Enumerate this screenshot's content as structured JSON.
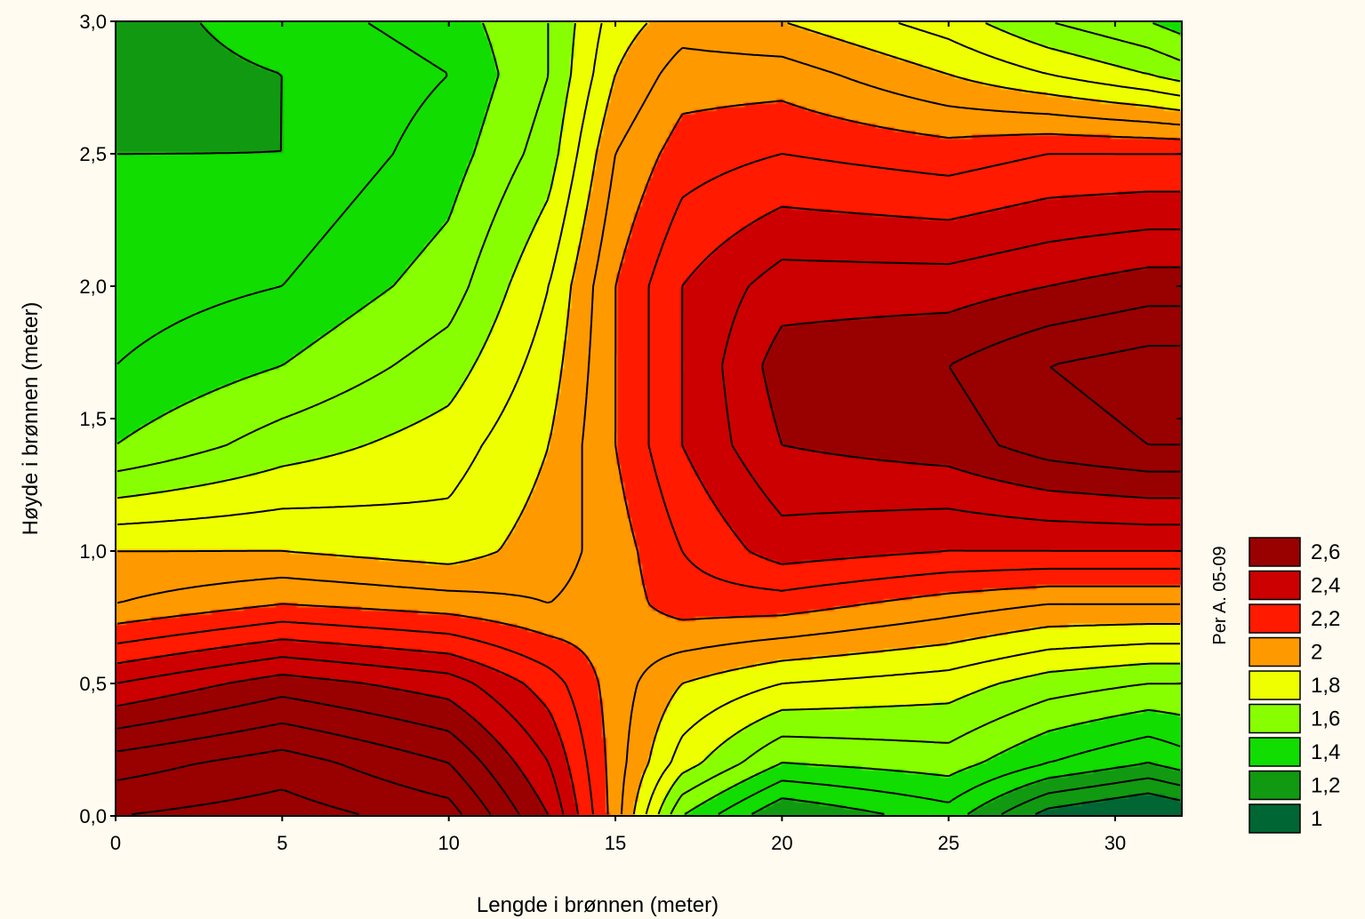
{
  "chart_data": {
    "type": "heatmap",
    "subtype": "filled-contour",
    "xlabel": "Lengde i brønnen (meter)",
    "ylabel": "Høyde i brønnen (meter)",
    "xlim": [
      0,
      32
    ],
    "ylim": [
      0,
      3
    ],
    "xticks": [
      0,
      5,
      10,
      15,
      20,
      25,
      30
    ],
    "xtick_labels": [
      "0",
      "5",
      "10",
      "15",
      "20",
      "25",
      "30"
    ],
    "yticks": [
      0,
      0.5,
      1.0,
      1.5,
      2.0,
      2.5,
      3.0
    ],
    "ytick_labels": [
      "0,0",
      "0,5",
      "1,0",
      "1,5",
      "2,0",
      "2,5",
      "3,0"
    ],
    "legend": {
      "position": "right",
      "entries": [
        {
          "label": "2,6",
          "level": 2.6,
          "color": "#990000"
        },
        {
          "label": "2,4",
          "level": 2.4,
          "color": "#cc0000"
        },
        {
          "label": "2,2",
          "level": 2.2,
          "color": "#ff1a00"
        },
        {
          "label": "2",
          "level": 2.0,
          "color": "#ff9900"
        },
        {
          "label": "1,8",
          "level": 1.8,
          "color": "#eeff00"
        },
        {
          "label": "1,6",
          "level": 1.6,
          "color": "#88ff00"
        },
        {
          "label": "1,4",
          "level": 1.4,
          "color": "#11dd00"
        },
        {
          "label": "1,2",
          "level": 1.2,
          "color": "#119911"
        },
        {
          "label": "1",
          "level": 1.0,
          "color": "#006633"
        }
      ]
    },
    "field_x": [
      0,
      5,
      10,
      13,
      15,
      17,
      20,
      25,
      28,
      31,
      32
    ],
    "field_y": [
      0,
      0.2,
      0.5,
      0.8,
      1.0,
      1.4,
      1.7,
      2.0,
      2.5,
      2.8,
      3.0
    ],
    "field_z": [
      [
        2.9,
        2.95,
        2.85,
        2.5,
        2.05,
        1.5,
        1.2,
        1.35,
        1.05,
        0.95,
        1.0
      ],
      [
        2.75,
        2.85,
        2.7,
        2.4,
        2.05,
        1.75,
        1.5,
        1.55,
        1.4,
        1.3,
        1.35
      ],
      [
        2.4,
        2.55,
        2.45,
        2.25,
        2.05,
        1.9,
        1.8,
        1.75,
        1.65,
        1.6,
        1.6
      ],
      [
        2.0,
        2.1,
        2.05,
        2.0,
        2.05,
        2.15,
        2.15,
        2.05,
        2.0,
        2.0,
        2.0
      ],
      [
        1.9,
        1.9,
        1.85,
        1.95,
        2.05,
        2.2,
        2.35,
        2.3,
        2.3,
        2.3,
        2.3
      ],
      [
        1.5,
        1.65,
        1.75,
        1.9,
        2.1,
        2.3,
        2.5,
        2.55,
        2.65,
        2.7,
        2.7
      ],
      [
        1.4,
        1.5,
        1.65,
        1.85,
        2.1,
        2.3,
        2.55,
        2.6,
        2.7,
        2.75,
        2.75
      ],
      [
        1.35,
        1.4,
        1.55,
        1.8,
        2.1,
        2.3,
        2.45,
        2.45,
        2.5,
        2.55,
        2.55
      ],
      [
        1.3,
        1.3,
        1.45,
        1.65,
        2.0,
        2.15,
        2.2,
        2.15,
        2.2,
        2.2,
        2.2
      ],
      [
        1.25,
        1.3,
        1.4,
        1.6,
        1.9,
        2.05,
        2.05,
        1.9,
        1.8,
        1.7,
        1.65
      ],
      [
        1.25,
        1.35,
        1.45,
        1.6,
        1.85,
        1.95,
        1.9,
        1.75,
        1.6,
        1.5,
        1.45
      ]
    ],
    "credit": "Per A. 05-09"
  }
}
